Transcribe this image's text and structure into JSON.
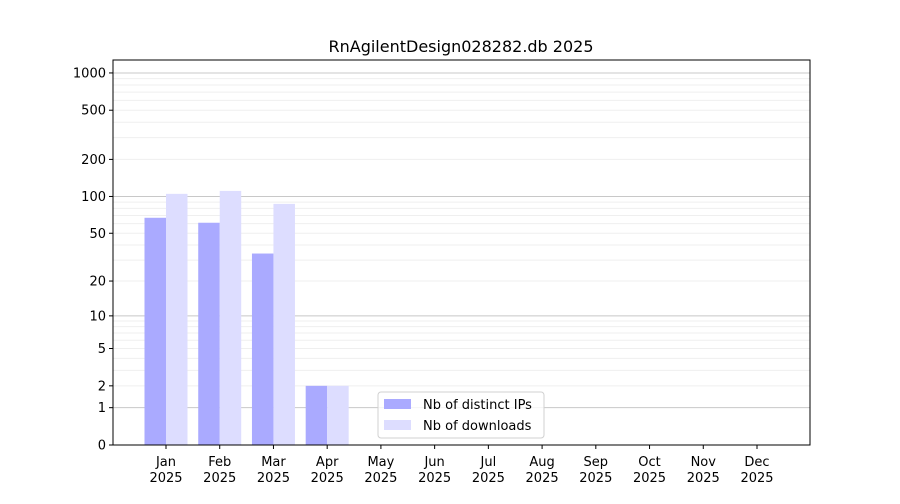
{
  "chart_data": {
    "type": "bar",
    "title": "RnAgilentDesign028282.db 2025",
    "xlabel": "",
    "ylabel": "",
    "yscale": "symlog",
    "ylim": [
      0,
      1300
    ],
    "yticks": [
      0,
      1,
      2,
      5,
      10,
      20,
      50,
      100,
      200,
      500,
      1000
    ],
    "categories": [
      "Jan\n2025",
      "Feb\n2025",
      "Mar\n2025",
      "Apr\n2025",
      "May\n2025",
      "Jun\n2025",
      "Jul\n2025",
      "Aug\n2025",
      "Sep\n2025",
      "Oct\n2025",
      "Nov\n2025",
      "Dec\n2025"
    ],
    "series": [
      {
        "name": "Nb of distinct IPs",
        "color": "#aaaaff",
        "values": [
          67,
          61,
          34,
          2,
          0,
          0,
          0,
          0,
          0,
          0,
          0,
          0
        ]
      },
      {
        "name": "Nb of downloads",
        "color": "#ddddff",
        "values": [
          105,
          111,
          87,
          2,
          0,
          0,
          0,
          0,
          0,
          0,
          0,
          0
        ]
      }
    ],
    "grid": true,
    "legend": "bottom-center"
  }
}
